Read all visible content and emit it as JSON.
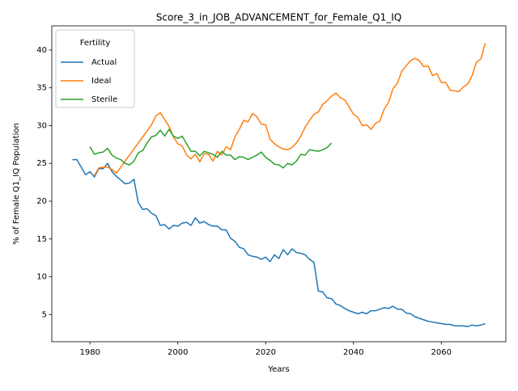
{
  "chart_data": {
    "type": "line",
    "title": "Score_3_in_JOB_ADVANCEMENT_for_Female_Q1_IQ",
    "x_label": "Years",
    "y_label": "% of Female Q1_IQ Population",
    "legend_title": "Fertility",
    "legend_position": "upper left",
    "grid": false,
    "x": [
      1976,
      1977,
      1978,
      1979,
      1980,
      1981,
      1982,
      1983,
      1984,
      1985,
      1986,
      1987,
      1988,
      1989,
      1990,
      1991,
      1992,
      1993,
      1994,
      1995,
      1996,
      1997,
      1998,
      1999,
      2000,
      2001,
      2002,
      2003,
      2004,
      2005,
      2006,
      2007,
      2008,
      2009,
      2010,
      2011,
      2012,
      2013,
      2014,
      2015,
      2016,
      2017,
      2018,
      2019,
      2020,
      2021,
      2022,
      2023,
      2024,
      2025,
      2026,
      2027,
      2028,
      2029,
      2030,
      2031,
      2032,
      2033,
      2034,
      2035,
      2036,
      2037,
      2038,
      2039,
      2040,
      2041,
      2042,
      2043,
      2044,
      2045,
      2046,
      2047,
      2048,
      2049,
      2050,
      2051,
      2052,
      2053,
      2054,
      2055,
      2056,
      2057,
      2058,
      2059,
      2060,
      2061,
      2062,
      2063,
      2064,
      2065,
      2066,
      2067,
      2068,
      2069,
      2070
    ],
    "xlim": [
      1971.3,
      2074.7
    ],
    "xticks": [
      1980,
      2000,
      2020,
      2040,
      2060
    ],
    "ylim": [
      1.4,
      43.2
    ],
    "yticks": [
      5,
      10,
      15,
      20,
      25,
      30,
      35,
      40
    ],
    "series": [
      {
        "name": "Actual",
        "color": "#1f77b4",
        "values": [
          25.5,
          25.5,
          24.5,
          23.5,
          23.9,
          23.2,
          24.3,
          24.3,
          25.0,
          23.9,
          23.3,
          22.8,
          22.3,
          22.4,
          22.9,
          19.8,
          18.9,
          19.0,
          18.4,
          18.1,
          16.8,
          16.9,
          16.3,
          16.8,
          16.7,
          17.1,
          17.2,
          16.8,
          17.8,
          17.1,
          17.3,
          16.9,
          16.7,
          16.7,
          16.2,
          16.2,
          15.1,
          14.7,
          13.9,
          13.7,
          12.9,
          12.7,
          12.6,
          12.3,
          12.6,
          12.0,
          12.9,
          12.4,
          13.6,
          12.9,
          13.7,
          13.2,
          13.1,
          12.9,
          12.3,
          11.9,
          8.1,
          8.0,
          7.2,
          7.1,
          6.4,
          6.2,
          5.8,
          5.5,
          5.3,
          5.1,
          5.3,
          5.1,
          5.5,
          5.5,
          5.7,
          5.9,
          5.8,
          6.1,
          5.7,
          5.7,
          5.2,
          5.1,
          4.7,
          4.5,
          4.3,
          4.1,
          4.0,
          3.9,
          3.8,
          3.7,
          3.7,
          3.5,
          3.5,
          3.5,
          3.4,
          3.6,
          3.5,
          3.6,
          3.8
        ]
      },
      {
        "name": "Ideal",
        "color": "#ff7f0e",
        "values": [
          null,
          null,
          null,
          null,
          null,
          23.4,
          24.4,
          24.5,
          24.5,
          24.2,
          23.7,
          24.5,
          25.3,
          26.1,
          26.9,
          27.7,
          28.5,
          29.3,
          30.1,
          31.3,
          31.7,
          30.8,
          29.9,
          28.5,
          27.6,
          27.3,
          26.1,
          25.6,
          26.2,
          25.2,
          26.3,
          26.2,
          25.3,
          26.6,
          26.1,
          27.2,
          26.8,
          28.5,
          29.5,
          30.7,
          30.5,
          31.6,
          31.2,
          30.2,
          30.1,
          28.2,
          27.6,
          27.2,
          26.9,
          26.8,
          27.1,
          27.7,
          28.6,
          29.8,
          30.7,
          31.5,
          31.8,
          32.8,
          33.3,
          33.9,
          34.3,
          33.7,
          33.4,
          32.5,
          31.5,
          31.1,
          30.0,
          30.1,
          29.5,
          30.3,
          30.6,
          32.2,
          33.1,
          34.9,
          35.6,
          37.2,
          37.9,
          38.6,
          38.9,
          38.6,
          37.8,
          37.9,
          36.6,
          36.9,
          35.7,
          35.7,
          34.7,
          34.6,
          34.5,
          35.1,
          35.5,
          36.6,
          38.4,
          38.8,
          40.9
        ]
      },
      {
        "name": "Sterile",
        "color": "#2ca02c",
        "values": [
          null,
          null,
          null,
          null,
          27.2,
          26.2,
          26.4,
          26.5,
          27.0,
          26.1,
          25.7,
          25.5,
          25.0,
          24.8,
          25.3,
          26.4,
          26.7,
          27.7,
          28.5,
          28.7,
          29.4,
          28.6,
          29.5,
          28.6,
          28.3,
          28.6,
          27.6,
          26.6,
          26.6,
          26.0,
          26.6,
          26.4,
          26.2,
          25.8,
          26.6,
          26.1,
          26.1,
          25.5,
          25.9,
          25.8,
          25.5,
          25.8,
          26.1,
          26.5,
          25.8,
          25.4,
          24.9,
          24.8,
          24.4,
          25.0,
          24.8,
          25.3,
          26.2,
          26.1,
          26.8,
          26.7,
          26.6,
          26.8,
          27.1,
          27.7,
          null,
          null,
          null,
          null,
          null,
          null,
          null,
          null,
          null,
          null,
          null,
          null,
          null,
          null,
          null,
          null,
          null,
          null,
          null,
          null,
          null,
          null,
          null,
          null,
          null,
          null,
          null,
          null,
          null,
          null,
          null,
          null,
          null,
          null,
          null
        ]
      }
    ]
  }
}
